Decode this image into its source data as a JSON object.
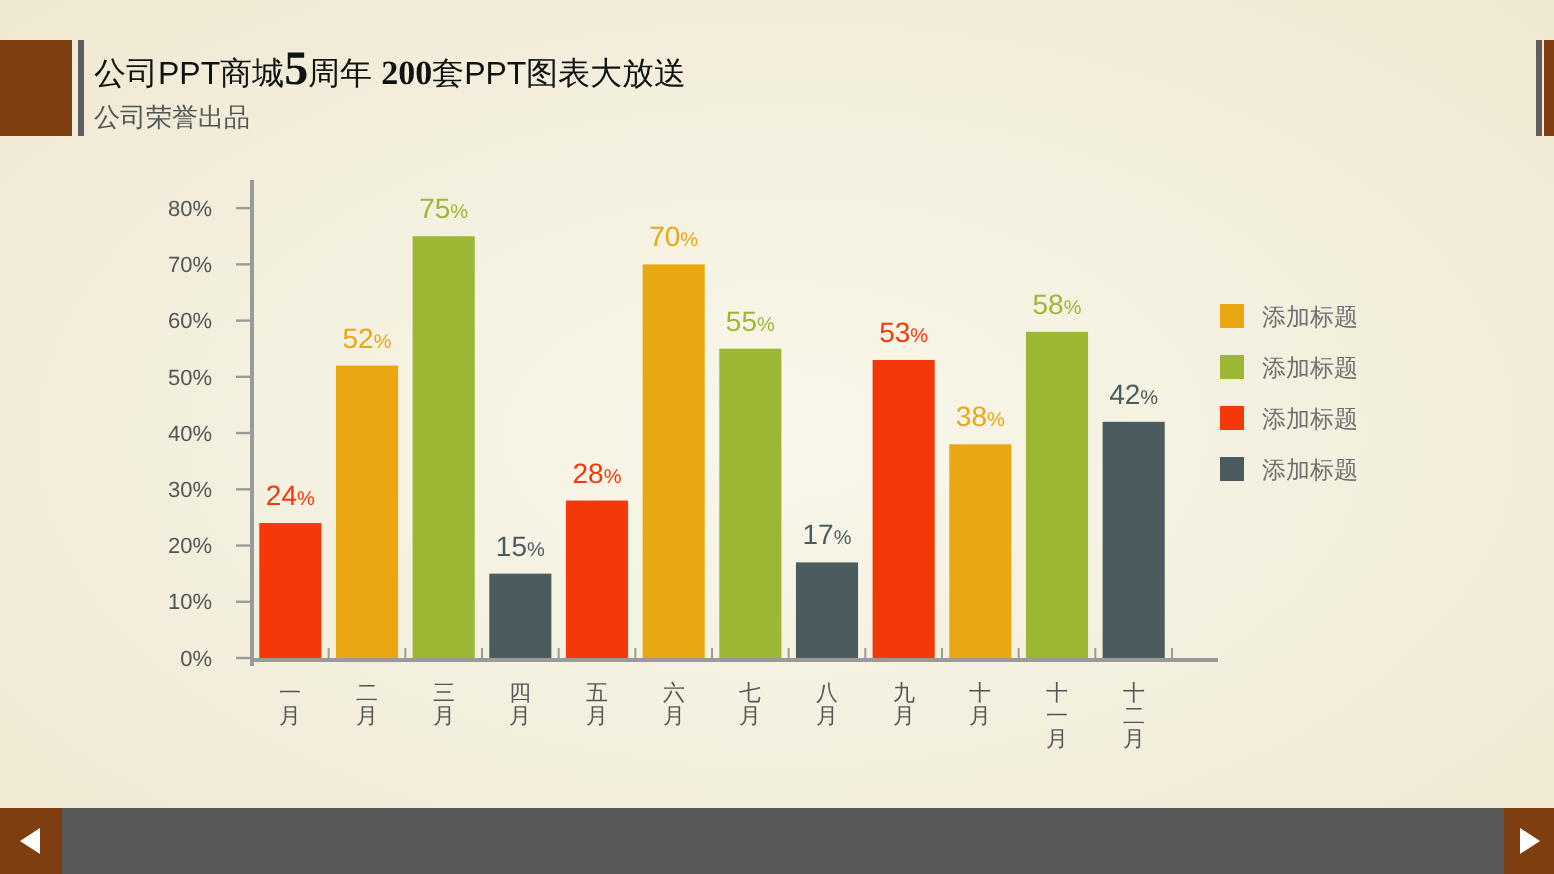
{
  "chart_data": {
    "type": "bar",
    "title": "公司PPT商城5周年 200套PPT图表大放送",
    "subtitle": "公司荣誉出品",
    "categories": [
      "一月",
      "二月",
      "三月",
      "四月",
      "五月",
      "六月",
      "七月",
      "八月",
      "九月",
      "十月",
      "十一月",
      "十二月"
    ],
    "series": [
      {
        "name": "添加标题",
        "color": "#e9a713",
        "values": [
          null,
          52,
          null,
          null,
          null,
          70,
          null,
          null,
          null,
          38,
          null,
          null
        ],
        "value_labels": [
          null,
          "52%",
          null,
          null,
          null,
          "70%",
          null,
          null,
          null,
          "38%",
          null,
          null
        ]
      },
      {
        "name": "添加标题",
        "color": "#9bb733",
        "values": [
          null,
          null,
          75,
          null,
          null,
          null,
          55,
          null,
          null,
          null,
          58,
          null
        ],
        "value_labels": [
          null,
          null,
          "75%",
          null,
          null,
          null,
          "55%",
          null,
          null,
          null,
          "58%",
          null
        ]
      },
      {
        "name": "添加标题",
        "color": "#f5380a",
        "values": [
          24,
          null,
          null,
          null,
          28,
          null,
          null,
          null,
          53,
          null,
          null,
          null
        ],
        "value_labels": [
          "24%",
          null,
          null,
          null,
          "28%",
          null,
          null,
          null,
          "53%",
          null,
          null,
          null
        ]
      },
      {
        "name": "添加标题",
        "color": "#4b5c5e",
        "values": [
          null,
          null,
          null,
          15,
          null,
          null,
          null,
          17,
          null,
          null,
          null,
          42
        ],
        "value_labels": [
          null,
          null,
          null,
          "15%",
          null,
          null,
          null,
          "17%",
          null,
          null,
          null,
          "42%"
        ]
      }
    ],
    "stacked": true,
    "ylim": [
      0,
      85
    ],
    "yticks": [
      {
        "value": 0,
        "label": "0%"
      },
      {
        "value": 10,
        "label": "10%"
      },
      {
        "value": 20,
        "label": "20%"
      },
      {
        "value": 30,
        "label": "30%"
      },
      {
        "value": 40,
        "label": "40%"
      },
      {
        "value": 50,
        "label": "50%"
      },
      {
        "value": 60,
        "label": "60%"
      },
      {
        "value": 70,
        "label": "70%"
      },
      {
        "value": 80,
        "label": "80%"
      }
    ],
    "legend": "right"
  }
}
